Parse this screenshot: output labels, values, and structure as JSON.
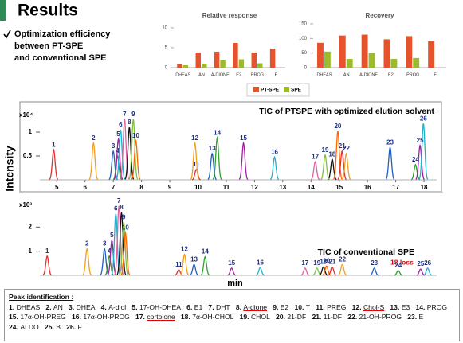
{
  "title": "Results",
  "bullet": [
    "Optimization efficiency",
    "between PT-SPE",
    "and conventional SPE"
  ],
  "y_label": "Intensity",
  "x_label": "min",
  "chart_data": [
    {
      "type": "bar",
      "title": "Relative response",
      "categories": [
        "DHEAS",
        "AN",
        "A-DIONE",
        "E2",
        "PROG",
        "F"
      ],
      "ylim": [
        0,
        10
      ],
      "yticks": [
        0,
        5,
        10
      ],
      "series": [
        {
          "name": "PT-SPE",
          "color": "#e5532d",
          "values": [
            0.9,
            3.8,
            4.0,
            6.2,
            3.8,
            4.8
          ]
        },
        {
          "name": "SPE",
          "color": "#9cbb2a",
          "values": [
            0.6,
            1.0,
            1.8,
            2.1,
            1.1,
            null
          ]
        }
      ]
    },
    {
      "type": "bar",
      "title": "Recovery",
      "categories": [
        "DHEAS",
        "AN",
        "A-DIONE",
        "E2",
        "PROG",
        "F"
      ],
      "ylim": [
        0,
        150
      ],
      "yticks": [
        0,
        50,
        100,
        150
      ],
      "series": [
        {
          "color": "#e5532d",
          "values": [
            85,
            110,
            113,
            97,
            108,
            90
          ]
        },
        {
          "color": "#9cbb2a",
          "values": [
            55,
            30,
            50,
            30,
            33,
            null
          ]
        }
      ]
    },
    {
      "type": "chromatogram",
      "title": "TIC of PTSPE with optimized elution solvent",
      "y_unit": "x10⁴",
      "xlim": [
        4.4,
        18.45
      ],
      "xticks": [
        5,
        6,
        7,
        8,
        9,
        10,
        11,
        12,
        13,
        14,
        15,
        16,
        17,
        18
      ],
      "ylim": [
        0,
        1.35
      ],
      "yticks": [
        0.5,
        1
      ],
      "colors": [
        "#e03030",
        "#f0a020",
        "#2060c0",
        "#30a030",
        "#a020a0",
        "#20b0d0",
        "#e060a0",
        "#111111",
        "#80c040",
        "#ff6600"
      ],
      "peaks": [
        {
          "label": "1",
          "x": 4.89,
          "y": 0.63
        },
        {
          "label": "2",
          "x": 6.3,
          "y": 0.77
        },
        {
          "label": "3",
          "x": 7.0,
          "y": 0.6
        },
        {
          "label": "4",
          "x": 7.15,
          "y": 0.5
        },
        {
          "label": "5",
          "x": 7.18,
          "y": 0.85
        },
        {
          "label": "6",
          "x": 7.26,
          "y": 1.05
        },
        {
          "label": "7",
          "x": 7.4,
          "y": 1.27
        },
        {
          "label": "8",
          "x": 7.57,
          "y": 1.1
        },
        {
          "label": "9",
          "x": 7.71,
          "y": 1.27
        },
        {
          "label": "10",
          "x": 7.8,
          "y": 0.82
        },
        {
          "label": "11",
          "x": 9.94,
          "y": 0.22
        },
        {
          "label": "12",
          "x": 9.89,
          "y": 0.77
        },
        {
          "label": "13",
          "x": 10.5,
          "y": 0.55
        },
        {
          "label": "14",
          "x": 10.68,
          "y": 0.88
        },
        {
          "label": "15",
          "x": 11.61,
          "y": 0.77
        },
        {
          "label": "16",
          "x": 12.71,
          "y": 0.48
        },
        {
          "label": "17",
          "x": 14.15,
          "y": 0.38
        },
        {
          "label": "18",
          "x": 14.75,
          "y": 0.43
        },
        {
          "label": "19",
          "x": 14.5,
          "y": 0.52
        },
        {
          "label": "20",
          "x": 14.95,
          "y": 1.02
        },
        {
          "label": "21",
          "x": 15.1,
          "y": 0.6
        },
        {
          "label": "22",
          "x": 15.25,
          "y": 0.55
        },
        {
          "label": "23",
          "x": 16.8,
          "y": 0.68
        },
        {
          "label": "24",
          "x": 17.7,
          "y": 0.32
        },
        {
          "label": "25",
          "x": 17.86,
          "y": 0.72
        },
        {
          "label": "26",
          "x": 17.98,
          "y": 1.18
        }
      ]
    },
    {
      "type": "chromatogram",
      "title": "TIC of conventional SPE",
      "annotation": "18 loss",
      "y_unit": "x10³",
      "xlim": [
        4.4,
        18.45
      ],
      "ylim": [
        0,
        2.9
      ],
      "yticks": [
        1,
        2
      ],
      "colors": [
        "#e03030",
        "#f0a020",
        "#2060c0",
        "#30a030",
        "#a020a0",
        "#20b0d0",
        "#e060a0",
        "#111111",
        "#80c040",
        "#ff6600"
      ],
      "peaks": [
        {
          "label": "1",
          "x": 4.66,
          "y": 0.8
        },
        {
          "label": "2",
          "x": 6.07,
          "y": 1.1
        },
        {
          "label": "3",
          "x": 6.69,
          "y": 1.1
        },
        {
          "label": "4",
          "x": 6.86,
          "y": 0.8
        },
        {
          "label": "5",
          "x": 6.95,
          "y": 1.45
        },
        {
          "label": "6",
          "x": 7.09,
          "y": 2.55
        },
        {
          "label": "7",
          "x": 7.2,
          "y": 2.87
        },
        {
          "label": "8",
          "x": 7.29,
          "y": 2.6
        },
        {
          "label": "9",
          "x": 7.37,
          "y": 2.2
        },
        {
          "label": "10",
          "x": 7.43,
          "y": 1.77
        },
        {
          "label": "11",
          "x": 9.32,
          "y": 0.23
        },
        {
          "label": "12",
          "x": 9.52,
          "y": 0.87
        },
        {
          "label": "13",
          "x": 9.86,
          "y": 0.45
        },
        {
          "label": "14",
          "x": 10.25,
          "y": 0.77
        },
        {
          "label": "15",
          "x": 11.19,
          "y": 0.3
        },
        {
          "label": "16",
          "x": 12.2,
          "y": 0.32
        },
        {
          "label": "17",
          "x": 13.79,
          "y": 0.3
        },
        {
          "label": "18",
          "x": 14.44,
          "y": 0.35
        },
        {
          "label": "19",
          "x": 14.21,
          "y": 0.3
        },
        {
          "label": "20",
          "x": 14.55,
          "y": 0.39
        },
        {
          "label": "21",
          "x": 14.75,
          "y": 0.35
        },
        {
          "label": "22",
          "x": 15.11,
          "y": 0.45
        },
        {
          "label": "23",
          "x": 16.24,
          "y": 0.3
        },
        {
          "label": "24",
          "x": 17.09,
          "y": 0.2
        },
        {
          "label": "25",
          "x": 17.88,
          "y": 0.26
        },
        {
          "label": "26",
          "x": 18.13,
          "y": 0.3
        }
      ]
    }
  ],
  "peak_identification": {
    "heading": "Peak identification :",
    "items": [
      {
        "number": "1.",
        "name": "DHEAS"
      },
      {
        "number": "2.",
        "name": "AN"
      },
      {
        "number": "3.",
        "name": "DHEA"
      },
      {
        "number": "4.",
        "name": "A-diol"
      },
      {
        "number": "5.",
        "name": "17-OH-DHEA"
      },
      {
        "number": "6.",
        "name": "E1"
      },
      {
        "number": "7.",
        "name": "DHT"
      },
      {
        "number": "8.",
        "name": "A-dione",
        "underline": true
      },
      {
        "number": "9.",
        "name": "E2"
      },
      {
        "number": "10.",
        "name": "T"
      },
      {
        "number": "11.",
        "name": "PREG"
      },
      {
        "number": "12.",
        "name": "Chol-S",
        "underline": true
      },
      {
        "number": "13.",
        "name": "E3"
      },
      {
        "number": "14.",
        "name": "PROG"
      },
      {
        "number": "15.",
        "name": "17α-OH-PREG"
      },
      {
        "number": "16.",
        "name": "17α-OH-PROG"
      },
      {
        "number": "17.",
        "name": "cortolone",
        "underline": true
      },
      {
        "number": "18.",
        "name": "7α-OH-CHOL"
      },
      {
        "number": "19.",
        "name": "CHOL"
      },
      {
        "number": "20.",
        "name": "21-DF"
      },
      {
        "number": "21.",
        "name": "11-DF"
      },
      {
        "number": "22.",
        "name": "21-OH-PROG"
      },
      {
        "number": "23.",
        "name": "E"
      },
      {
        "number": "24.",
        "name": "ALDO"
      },
      {
        "number": "25.",
        "name": "B"
      },
      {
        "number": "26.",
        "name": "F"
      }
    ]
  }
}
